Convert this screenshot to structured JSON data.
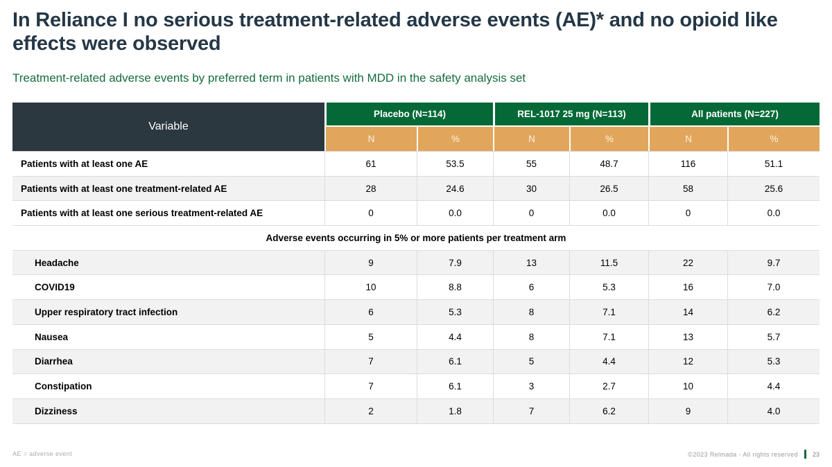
{
  "slide": {
    "title": "In Reliance I no serious treatment-related adverse events (AE)* and no opioid like effects were observed",
    "subtitle": "Treatment-related adverse events by preferred term in patients with MDD in the safety analysis set"
  },
  "colors": {
    "title_text": "#243746",
    "subtitle_green": "#156B3F",
    "header_dark": "#2C3840",
    "header_green": "#056937",
    "header_tan": "#E1A65C",
    "row_shaded": "#F2F2F2",
    "row_border": "#DCDCDC",
    "footer_divider_green": "#056937"
  },
  "table": {
    "variable_header": "Variable",
    "groups": [
      {
        "label": "Placebo (N=114)"
      },
      {
        "label": "REL-1017 25 mg (N=113)"
      },
      {
        "label": "All patients (N=227)"
      }
    ],
    "subheaders": [
      "N",
      "%",
      "N",
      "%",
      "N",
      "%"
    ],
    "rows": [
      {
        "label": "Patients with at least one AE",
        "indent": false,
        "shaded": false,
        "values": [
          "61",
          "53.5",
          "55",
          "48.7",
          "116",
          "51.1"
        ]
      },
      {
        "label": "Patients with at least one treatment-related AE",
        "indent": false,
        "shaded": true,
        "values": [
          "28",
          "24.6",
          "30",
          "26.5",
          "58",
          "25.6"
        ]
      },
      {
        "label": "Patients with at least one serious treatment-related AE",
        "indent": false,
        "shaded": false,
        "values": [
          "0",
          "0.0",
          "0",
          "0.0",
          "0",
          "0.0"
        ]
      },
      {
        "section": true,
        "label": "Adverse events occurring in 5% or more patients per treatment arm"
      },
      {
        "label": "Headache",
        "indent": true,
        "shaded": true,
        "values": [
          "9",
          "7.9",
          "13",
          "11.5",
          "22",
          "9.7"
        ]
      },
      {
        "label": "COVID19",
        "indent": true,
        "shaded": false,
        "values": [
          "10",
          "8.8",
          "6",
          "5.3",
          "16",
          "7.0"
        ]
      },
      {
        "label": "Upper respiratory tract infection",
        "indent": true,
        "shaded": true,
        "values": [
          "6",
          "5.3",
          "8",
          "7.1",
          "14",
          "6.2"
        ]
      },
      {
        "label": "Nausea",
        "indent": true,
        "shaded": false,
        "values": [
          "5",
          "4.4",
          "8",
          "7.1",
          "13",
          "5.7"
        ]
      },
      {
        "label": "Diarrhea",
        "indent": true,
        "shaded": true,
        "values": [
          "7",
          "6.1",
          "5",
          "4.4",
          "12",
          "5.3"
        ]
      },
      {
        "label": "Constipation",
        "indent": true,
        "shaded": false,
        "values": [
          "7",
          "6.1",
          "3",
          "2.7",
          "10",
          "4.4"
        ]
      },
      {
        "label": "Dizziness",
        "indent": true,
        "shaded": true,
        "values": [
          "2",
          "1.8",
          "7",
          "6.2",
          "9",
          "4.0"
        ]
      }
    ]
  },
  "footer": {
    "left_note": "AE = adverse event",
    "copyright": "©2023 Relmada - All rights reserved",
    "page_number": "23"
  }
}
